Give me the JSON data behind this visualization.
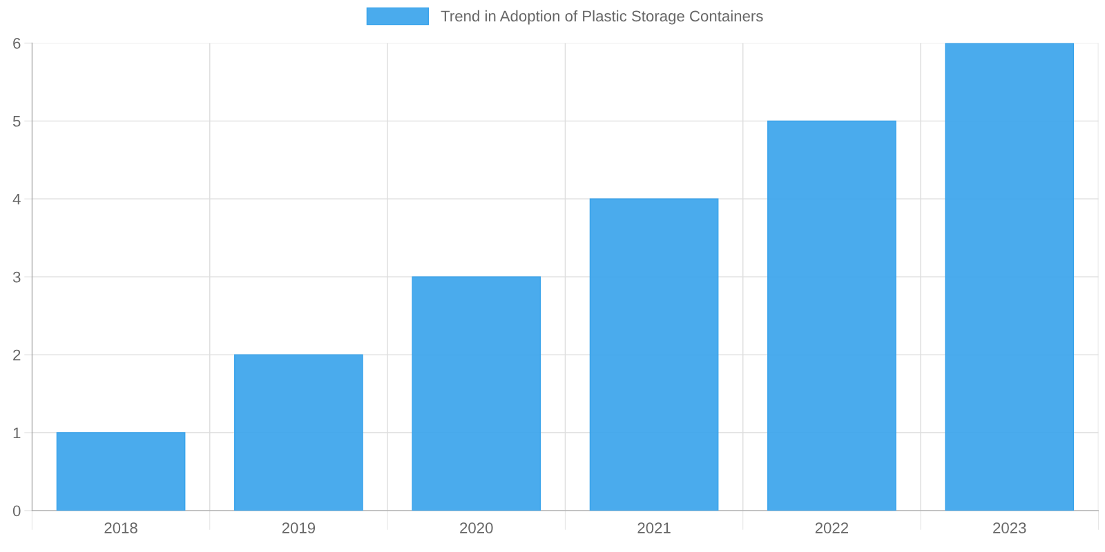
{
  "chart_data": {
    "type": "bar",
    "categories": [
      "2018",
      "2019",
      "2020",
      "2021",
      "2022",
      "2023"
    ],
    "series": [
      {
        "name": "Trend in Adoption of Plastic Storage Containers",
        "color": "#36a2eb",
        "values": [
          1,
          2,
          3,
          4,
          5,
          6
        ]
      }
    ],
    "ylim": [
      0,
      6
    ],
    "yticks": [
      0,
      1,
      2,
      3,
      4,
      5,
      6
    ],
    "grid": true,
    "legend": "top"
  }
}
